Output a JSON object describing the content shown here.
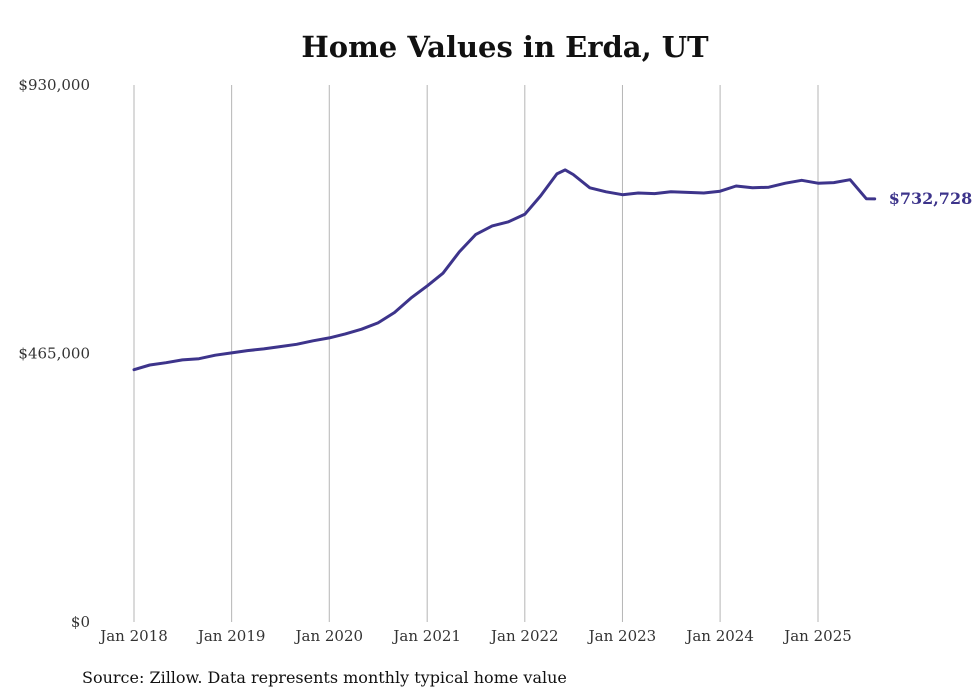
{
  "chart_data": {
    "type": "line",
    "title": "Home Values in Erda, UT",
    "source": "Source: Zillow. Data represents monthly typical home value",
    "ylim": [
      0,
      930000
    ],
    "y_ticks": [
      0,
      465000,
      930000
    ],
    "y_tick_labels": [
      "$0",
      "$465,000",
      "$930,000"
    ],
    "x_ticks": [
      "2018-01",
      "2019-01",
      "2020-01",
      "2021-01",
      "2022-01",
      "2023-01",
      "2024-01",
      "2025-01"
    ],
    "x_tick_labels": [
      "Jan 2018",
      "Jan 2019",
      "Jan 2020",
      "Jan 2021",
      "Jan 2022",
      "Jan 2023",
      "Jan 2024",
      "Jan 2025"
    ],
    "grid": "vertical",
    "line_color": "#3d348b",
    "end_label": "$732,728",
    "series": [
      {
        "x": [
          "2018-01",
          "2018-03",
          "2018-05",
          "2018-07",
          "2018-09",
          "2018-11",
          "2019-01",
          "2019-03",
          "2019-05",
          "2019-07",
          "2019-09",
          "2019-11",
          "2020-01",
          "2020-03",
          "2020-05",
          "2020-07",
          "2020-09",
          "2020-11",
          "2021-01",
          "2021-03",
          "2021-05",
          "2021-07",
          "2021-09",
          "2021-11",
          "2022-01",
          "2022-03",
          "2022-05",
          "2022-06",
          "2022-07",
          "2022-09",
          "2022-11",
          "2023-01",
          "2023-03",
          "2023-05",
          "2023-07",
          "2023-09",
          "2023-11",
          "2024-01",
          "2024-03",
          "2024-05",
          "2024-07",
          "2024-09",
          "2024-11",
          "2025-01",
          "2025-03",
          "2025-05",
          "2025-07",
          "2025-08"
        ],
        "values": [
          437000,
          445000,
          449000,
          454000,
          456000,
          462000,
          466000,
          470000,
          473000,
          477000,
          481000,
          487000,
          492000,
          499000,
          507000,
          518000,
          536000,
          561000,
          582000,
          604000,
          641000,
          671000,
          686000,
          693000,
          706000,
          738000,
          776000,
          783000,
          775000,
          752000,
          745000,
          740000,
          743000,
          742000,
          745000,
          744000,
          743000,
          746000,
          755000,
          752000,
          753000,
          760000,
          765000,
          760000,
          761000,
          766000,
          733000,
          732728
        ]
      }
    ]
  }
}
